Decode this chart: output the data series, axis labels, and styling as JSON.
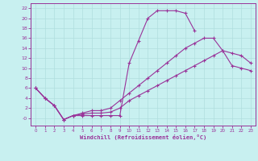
{
  "xlabel": "Windchill (Refroidissement éolien,°C)",
  "bg_color": "#c8f0f0",
  "grid_color": "#b0dede",
  "line_color": "#993399",
  "xlim": [
    -0.5,
    23.5
  ],
  "ylim": [
    -1.5,
    23
  ],
  "xticks": [
    0,
    1,
    2,
    3,
    4,
    5,
    6,
    7,
    8,
    9,
    10,
    11,
    12,
    13,
    14,
    15,
    16,
    17,
    18,
    19,
    20,
    21,
    22,
    23
  ],
  "yticks": [
    0,
    2,
    4,
    6,
    8,
    10,
    12,
    14,
    16,
    18,
    20,
    22
  ],
  "ytick_labels": [
    "-0",
    "2",
    "4",
    "6",
    "8",
    "10",
    "12",
    "14",
    "16",
    "18",
    "20",
    "22"
  ],
  "line1_x": [
    0,
    1,
    2,
    3,
    4,
    5,
    6,
    7,
    8,
    9,
    10,
    11,
    12,
    13,
    14,
    15,
    16,
    17
  ],
  "line1_y": [
    6.0,
    4.0,
    2.5,
    -0.3,
    0.5,
    0.5,
    0.5,
    0.5,
    0.5,
    0.5,
    11.0,
    15.5,
    20.0,
    21.5,
    21.5,
    21.5,
    21.0,
    17.5
  ],
  "line2_x": [
    0,
    1,
    2,
    3,
    4,
    5,
    6,
    7,
    8,
    9,
    10,
    11,
    12,
    13,
    14,
    15,
    16,
    17,
    18,
    19,
    20,
    21,
    22,
    23
  ],
  "line2_y": [
    6.0,
    4.0,
    2.5,
    -0.3,
    0.5,
    1.0,
    1.5,
    1.5,
    2.0,
    3.5,
    5.0,
    6.5,
    8.0,
    9.5,
    11.0,
    12.5,
    14.0,
    15.0,
    16.0,
    16.0,
    13.5,
    13.0,
    12.5,
    11.0
  ],
  "line3_x": [
    0,
    1,
    2,
    3,
    4,
    5,
    6,
    7,
    8,
    9,
    10,
    11,
    12,
    13,
    14,
    15,
    16,
    17,
    18,
    19,
    20,
    21,
    22,
    23
  ],
  "line3_y": [
    6.0,
    4.0,
    2.5,
    -0.3,
    0.5,
    0.8,
    1.0,
    1.0,
    1.2,
    2.0,
    3.5,
    4.5,
    5.5,
    6.5,
    7.5,
    8.5,
    9.5,
    10.5,
    11.5,
    12.5,
    13.5,
    10.5,
    10.0,
    9.5
  ]
}
